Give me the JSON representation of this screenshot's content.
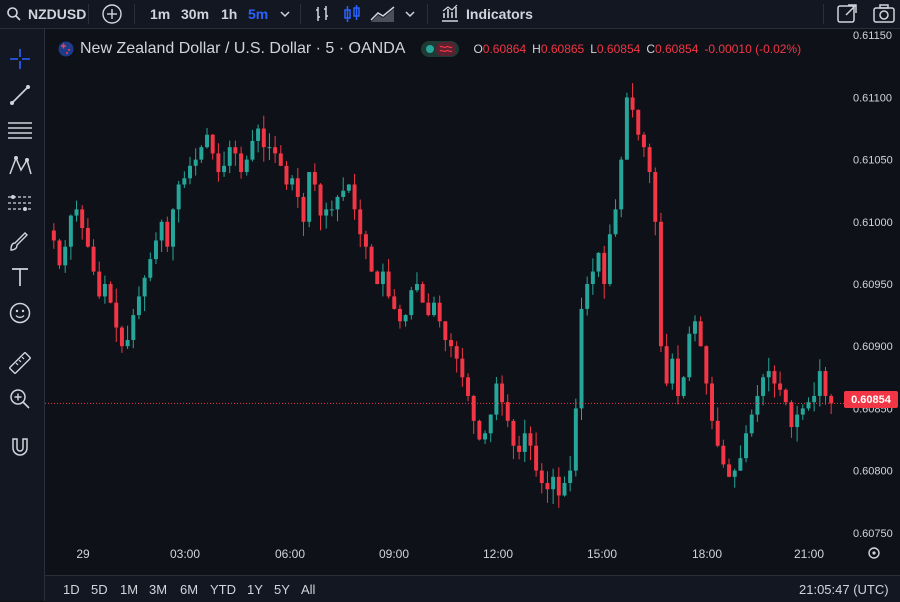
{
  "toolbar": {
    "symbol": "NZDUSD",
    "intervals": [
      "1m",
      "30m",
      "1h",
      "5m"
    ],
    "active_interval": "5m",
    "indicators_label": "Indicators"
  },
  "legend": {
    "title": "New Zealand Dollar / U.S. Dollar · 5 · OANDA",
    "open_label": "O",
    "open": "0.60864",
    "high_label": "H",
    "high": "0.60865",
    "low_label": "L",
    "low": "0.60854",
    "close_label": "C",
    "close": "0.60854",
    "change": "-0.00010 (-0.02%)"
  },
  "colors": {
    "up": "#26a69a",
    "down": "#f23645",
    "accent": "#2962ff",
    "background": "#0e1117"
  },
  "price_axis": {
    "labels": [
      "0.61150",
      "0.61100",
      "0.61050",
      "0.61000",
      "0.60950",
      "0.60900",
      "0.60850",
      "0.60800",
      "0.60750"
    ],
    "current_price": "0.60854"
  },
  "time_axis": {
    "labels": [
      "29",
      "03:00",
      "06:00",
      "09:00",
      "12:00",
      "15:00",
      "18:00",
      "21:00"
    ]
  },
  "ranges": [
    "1D",
    "5D",
    "1M",
    "3M",
    "6M",
    "YTD",
    "1Y",
    "5Y",
    "All"
  ],
  "clock": "21:05:47 (UTC)",
  "tools": [
    "crosshair-icon",
    "trend-line-icon",
    "fib-retracement-icon",
    "pattern-icon",
    "forecast-icon",
    "brush-icon",
    "text-icon",
    "emoji-icon",
    "ruler-icon",
    "zoom-icon",
    "magnet-icon"
  ],
  "chart_data": {
    "type": "candlestick",
    "ylim": [
      0.60745,
      0.61155
    ],
    "closes": [
      0.60985,
      0.60965,
      0.6098,
      0.61005,
      0.6101,
      0.60995,
      0.6098,
      0.6096,
      0.6094,
      0.6095,
      0.60935,
      0.60915,
      0.609,
      0.60905,
      0.60925,
      0.6094,
      0.60955,
      0.6097,
      0.60985,
      0.61,
      0.6098,
      0.6101,
      0.6103,
      0.61035,
      0.61045,
      0.6105,
      0.6106,
      0.6107,
      0.61055,
      0.6104,
      0.61045,
      0.6106,
      0.61055,
      0.6104,
      0.6105,
      0.61065,
      0.61075,
      0.6106,
      0.6106,
      0.61055,
      0.61045,
      0.6103,
      0.61035,
      0.6102,
      0.61,
      0.6104,
      0.6103,
      0.61005,
      0.6101,
      0.6101,
      0.6102,
      0.61025,
      0.6103,
      0.6101,
      0.6099,
      0.6098,
      0.6096,
      0.6095,
      0.6096,
      0.6094,
      0.6093,
      0.6092,
      0.60925,
      0.60945,
      0.6095,
      0.60935,
      0.60925,
      0.60935,
      0.6092,
      0.60905,
      0.609,
      0.6089,
      0.60875,
      0.6086,
      0.6084,
      0.60825,
      0.6083,
      0.60845,
      0.6087,
      0.60855,
      0.6084,
      0.6082,
      0.60815,
      0.6083,
      0.6082,
      0.608,
      0.6079,
      0.60785,
      0.60795,
      0.6078,
      0.6079,
      0.608,
      0.6085,
      0.6093,
      0.6095,
      0.6096,
      0.60975,
      0.6095,
      0.6099,
      0.6101,
      0.6105,
      0.611,
      0.6109,
      0.6107,
      0.6106,
      0.6104,
      0.61,
      0.609,
      0.6087,
      0.6089,
      0.6086,
      0.60875,
      0.6091,
      0.6092,
      0.609,
      0.6087,
      0.6084,
      0.6082,
      0.60805,
      0.60795,
      0.608,
      0.6081,
      0.6083,
      0.60845,
      0.6086,
      0.60875,
      0.6088,
      0.6087,
      0.60865,
      0.60855,
      0.60835,
      0.60845,
      0.6085,
      0.60855,
      0.6086,
      0.6088,
      0.6086,
      0.60854
    ],
    "time_ticks": [
      "29",
      "03:00",
      "06:00",
      "09:00",
      "12:00",
      "15:00",
      "18:00",
      "21:00"
    ],
    "current_price": 0.60854
  }
}
